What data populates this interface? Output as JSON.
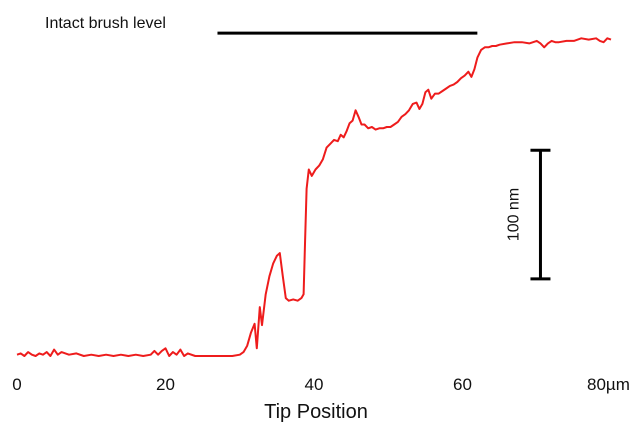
{
  "chart_data": {
    "type": "line",
    "title": "",
    "xlabel": "Tip Position",
    "ylabel": "",
    "x_unit": "µm",
    "xlim": [
      0,
      80
    ],
    "ylim": [
      0,
      262
    ],
    "x_ticks": [
      {
        "value": 0,
        "label": "0"
      },
      {
        "value": 20,
        "label": "20"
      },
      {
        "value": 40,
        "label": "40"
      },
      {
        "value": 60,
        "label": "60"
      },
      {
        "value": 80,
        "label": "80µm"
      }
    ],
    "grid": false,
    "series": [
      {
        "color": "#ee1c1c",
        "points": [
          [
            0,
            1
          ],
          [
            0.5,
            2
          ],
          [
            1,
            0
          ],
          [
            1.5,
            3
          ],
          [
            2,
            1
          ],
          [
            2.5,
            0
          ],
          [
            3,
            2
          ],
          [
            3.5,
            1
          ],
          [
            4,
            3
          ],
          [
            4.5,
            0
          ],
          [
            5,
            5
          ],
          [
            5.5,
            1
          ],
          [
            6,
            3
          ],
          [
            7,
            1
          ],
          [
            8,
            2
          ],
          [
            9,
            0
          ],
          [
            10,
            1
          ],
          [
            11,
            0
          ],
          [
            12,
            1
          ],
          [
            13,
            0
          ],
          [
            14,
            1
          ],
          [
            15,
            0
          ],
          [
            16,
            1
          ],
          [
            17,
            0
          ],
          [
            18,
            1
          ],
          [
            18.5,
            4
          ],
          [
            19,
            1
          ],
          [
            19.5,
            4
          ],
          [
            20,
            6
          ],
          [
            20.5,
            0
          ],
          [
            21,
            3
          ],
          [
            21.5,
            1
          ],
          [
            22,
            5
          ],
          [
            22.5,
            0
          ],
          [
            23,
            2
          ],
          [
            24,
            0
          ],
          [
            25,
            0
          ],
          [
            26,
            0
          ],
          [
            27,
            0
          ],
          [
            28,
            0
          ],
          [
            29,
            0
          ],
          [
            30,
            1
          ],
          [
            30.5,
            3
          ],
          [
            31,
            8
          ],
          [
            31.5,
            18
          ],
          [
            32,
            25
          ],
          [
            32.3,
            6
          ],
          [
            32.7,
            38
          ],
          [
            33,
            24
          ],
          [
            33.5,
            48
          ],
          [
            34,
            62
          ],
          [
            34.5,
            72
          ],
          [
            35,
            78
          ],
          [
            35.4,
            80
          ],
          [
            35.8,
            62
          ],
          [
            36.2,
            45
          ],
          [
            36.6,
            43
          ],
          [
            37.2,
            44
          ],
          [
            37.8,
            43
          ],
          [
            38.3,
            45
          ],
          [
            38.6,
            48
          ],
          [
            38.8,
            90
          ],
          [
            39,
            130
          ],
          [
            39.3,
            145
          ],
          [
            39.7,
            140
          ],
          [
            40.2,
            145
          ],
          [
            40.7,
            148
          ],
          [
            41.2,
            153
          ],
          [
            41.7,
            162
          ],
          [
            42.2,
            165
          ],
          [
            42.7,
            168
          ],
          [
            43.2,
            167
          ],
          [
            43.6,
            172
          ],
          [
            44,
            170
          ],
          [
            44.4,
            175
          ],
          [
            44.8,
            181
          ],
          [
            45.2,
            183
          ],
          [
            45.6,
            191
          ],
          [
            46,
            186
          ],
          [
            46.4,
            180
          ],
          [
            46.8,
            180
          ],
          [
            47.3,
            177
          ],
          [
            47.8,
            178
          ],
          [
            48.3,
            176
          ],
          [
            48.8,
            177
          ],
          [
            49.3,
            177
          ],
          [
            49.8,
            178
          ],
          [
            50.3,
            178
          ],
          [
            50.8,
            180
          ],
          [
            51.3,
            182
          ],
          [
            51.8,
            186
          ],
          [
            52.3,
            188
          ],
          [
            52.8,
            191
          ],
          [
            53.3,
            196
          ],
          [
            53.8,
            197
          ],
          [
            54.2,
            192
          ],
          [
            54.6,
            196
          ],
          [
            55,
            205
          ],
          [
            55.4,
            207
          ],
          [
            55.8,
            200
          ],
          [
            56.3,
            204
          ],
          [
            56.8,
            204
          ],
          [
            57.3,
            206
          ],
          [
            57.8,
            208
          ],
          [
            58.3,
            210
          ],
          [
            58.8,
            211
          ],
          [
            59.3,
            213
          ],
          [
            59.8,
            216
          ],
          [
            60.3,
            218
          ],
          [
            60.8,
            221
          ],
          [
            61.2,
            217
          ],
          [
            61.6,
            223
          ],
          [
            62,
            232
          ],
          [
            62.5,
            238
          ],
          [
            63,
            240
          ],
          [
            63.5,
            240
          ],
          [
            64,
            241
          ],
          [
            64.5,
            241
          ],
          [
            65,
            242
          ],
          [
            66,
            243
          ],
          [
            67,
            244
          ],
          [
            68,
            244
          ],
          [
            69,
            243
          ],
          [
            70,
            245
          ],
          [
            70.5,
            243
          ],
          [
            71,
            240
          ],
          [
            71.5,
            243
          ],
          [
            72,
            245
          ],
          [
            72.5,
            244
          ],
          [
            73,
            244
          ],
          [
            74,
            245
          ],
          [
            75,
            245
          ],
          [
            76,
            247
          ],
          [
            77,
            246
          ],
          [
            78,
            247
          ],
          [
            78.5,
            245
          ],
          [
            79,
            244
          ],
          [
            79.5,
            247
          ],
          [
            80,
            246
          ]
        ]
      }
    ],
    "reference_line": {
      "label": "Intact brush level",
      "x_start": 27,
      "x_end": 62,
      "y": 251
    },
    "scale_bar": {
      "label": "100 nm",
      "x": 70.5,
      "y_low": 60,
      "y_high": 160
    }
  }
}
